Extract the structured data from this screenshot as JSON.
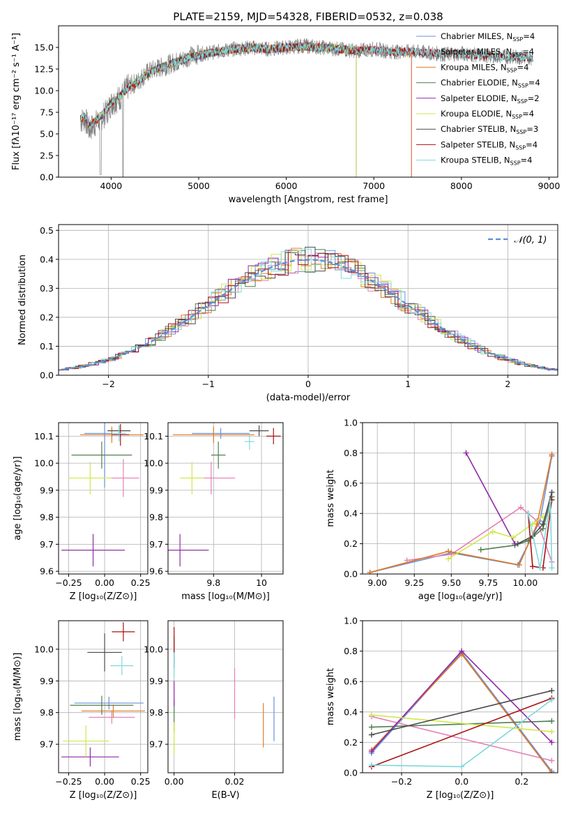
{
  "colors": {
    "chabrier_miles": "#6a8fd8",
    "salpeter_miles": "#e67fb5",
    "kroupa_miles": "#e07a22",
    "chabrier_elodie": "#4f7f4f",
    "salpeter_elodie": "#8e2aa6",
    "kroupa_elodie": "#cfe84a",
    "chabrier_stelib": "#4a4a4a",
    "salpeter_stelib": "#aa1111",
    "kroupa_stelib": "#7fd8dc",
    "normal_fit": "#5b8fd8"
  },
  "chart_data": [
    {
      "id": "spectrum",
      "type": "line",
      "title": "PLATE=2159, MJD=54328, FIBERID=0532, z=0.038",
      "xlabel": "wavelength [Angstrom, rest frame]",
      "ylabel": "Flux [fλ10⁻¹⁷ erg cm⁻² s⁻¹ A⁻¹]",
      "xlim": [
        3400,
        9100
      ],
      "ylim": [
        0,
        17.5
      ],
      "xticks": [
        4000,
        5000,
        6000,
        7000,
        8000,
        9000
      ],
      "yticks": [
        0.0,
        2.5,
        5.0,
        7.5,
        10.0,
        12.5,
        15.0
      ],
      "data_curve": {
        "name": "data",
        "color": "#808080",
        "x": [
          3650,
          3700,
          3750,
          3800,
          3850,
          3900,
          3950,
          4000,
          4100,
          4200,
          4300,
          4400,
          4500,
          4600,
          4700,
          4800,
          4900,
          5000,
          5200,
          5400,
          5600,
          5800,
          6000,
          6200,
          6400,
          6600,
          6800,
          7000,
          7200,
          7400,
          7600,
          7800,
          8000,
          8200,
          8400,
          8600,
          8800
        ],
        "y": [
          6.5,
          6.8,
          5.5,
          6.0,
          6.5,
          7.0,
          7.5,
          8.5,
          9.2,
          10.5,
          11.0,
          12.0,
          12.5,
          12.8,
          13.2,
          13.5,
          14.0,
          14.2,
          14.5,
          14.8,
          15.0,
          14.8,
          15.0,
          15.2,
          15.0,
          14.8,
          14.6,
          14.8,
          14.5,
          14.5,
          14.4,
          14.2,
          14.3,
          14.1,
          14.0,
          13.9,
          13.8
        ]
      },
      "model_curve": {
        "x": [
          3650,
          3700,
          3750,
          3800,
          3850,
          3900,
          3950,
          4000,
          4100,
          4200,
          4300,
          4400,
          4500,
          4600,
          4700,
          4800,
          4900,
          5000,
          5200,
          5400,
          5600,
          5800,
          6000,
          6200,
          6400,
          6600,
          6800,
          7000,
          7200,
          7400
        ],
        "y": [
          6.8,
          7.0,
          6.0,
          6.3,
          6.8,
          7.2,
          7.8,
          8.6,
          9.3,
          10.4,
          11.0,
          11.8,
          12.4,
          12.8,
          13.2,
          13.5,
          13.9,
          14.1,
          14.5,
          14.8,
          15.0,
          14.8,
          15.0,
          15.1,
          15.0,
          14.8,
          14.6,
          14.7,
          14.5,
          14.5
        ]
      },
      "model_extents": {
        "chabrier_miles": 7430,
        "salpeter_miles": 7430,
        "kroupa_miles": 7430,
        "chabrier_elodie": 6800,
        "salpeter_elodie": 6800,
        "kroupa_elodie": 6800,
        "chabrier_stelib": 8820,
        "salpeter_stelib": 8820,
        "kroupa_stelib": 8820
      },
      "legend": [
        {
          "key": "chabrier_miles",
          "label": "Chabrier MILES, N",
          "sub": "SSP",
          "tail": "=4"
        },
        {
          "key": "salpeter_miles",
          "label": "Salpeter MILES, N",
          "sub": "SSP",
          "tail": "=4"
        },
        {
          "key": "kroupa_miles",
          "label": "Kroupa MILES, N",
          "sub": "SSP",
          "tail": "=4"
        },
        {
          "key": "chabrier_elodie",
          "label": "Chabrier ELODIE, N",
          "sub": "SSP",
          "tail": "=4"
        },
        {
          "key": "salpeter_elodie",
          "label": "Salpeter ELODIE, N",
          "sub": "SSP",
          "tail": "=2"
        },
        {
          "key": "kroupa_elodie",
          "label": "Kroupa ELODIE, N",
          "sub": "SSP",
          "tail": "=4"
        },
        {
          "key": "chabrier_stelib",
          "label": "Chabrier STELIB, N",
          "sub": "SSP",
          "tail": "=3"
        },
        {
          "key": "salpeter_stelib",
          "label": "Salpeter STELIB, N",
          "sub": "SSP",
          "tail": "=4"
        },
        {
          "key": "kroupa_stelib",
          "label": "Kroupa STELIB, N",
          "sub": "SSP",
          "tail": "=4"
        }
      ],
      "grid": false,
      "legend_position": "top-right"
    },
    {
      "id": "residuals",
      "type": "line",
      "xlabel": "(data-model)/error",
      "ylabel": "Normed distribution",
      "xlim": [
        -2.5,
        2.5
      ],
      "ylim": [
        0,
        0.52
      ],
      "xticks": [
        -2,
        -1,
        0,
        1,
        2
      ],
      "xtick_labels": [
        "−2",
        "−1",
        "0",
        "1",
        "2"
      ],
      "yticks": [
        0.0,
        0.1,
        0.2,
        0.3,
        0.4,
        0.5
      ],
      "grid": true,
      "bin_width": 0.1,
      "fit_label": "𝒩(0, 1)",
      "legend_position": "top-right"
    },
    {
      "id": "age_vs_Z",
      "type": "scatter",
      "xlabel": "Z [log₁₀(Z/Z⊙)]",
      "ylabel": "age  [log₁₀(age/yr)]",
      "xlim": [
        -0.32,
        0.3
      ],
      "ylim": [
        9.59,
        10.15
      ],
      "xticks": [
        -0.25,
        0.0,
        0.25
      ],
      "xtick_labels": [
        "−0.25",
        "0.00",
        "0.25"
      ],
      "yticks": [
        9.6,
        9.7,
        9.8,
        9.9,
        10.0,
        10.1
      ],
      "grid": true,
      "points": [
        {
          "key": "chabrier_miles",
          "x": 0.0,
          "y": 10.11,
          "xerr": 0.14,
          "yerr": 0.2
        },
        {
          "key": "salpeter_miles",
          "x": 0.13,
          "y": 9.945,
          "xerr": 0.11,
          "yerr": 0.07
        },
        {
          "key": "kroupa_miles",
          "x": 0.05,
          "y": 10.105,
          "xerr": 0.22,
          "yerr": 0.03
        },
        {
          "key": "chabrier_elodie",
          "x": -0.02,
          "y": 10.03,
          "xerr": 0.21,
          "yerr": 0.05
        },
        {
          "key": "salpeter_elodie",
          "x": -0.08,
          "y": 9.678,
          "xerr": 0.22,
          "yerr": 0.06
        },
        {
          "key": "kroupa_elodie",
          "x": -0.1,
          "y": 9.945,
          "xerr": 0.15,
          "yerr": 0.06
        },
        {
          "key": "chabrier_stelib",
          "x": 0.1,
          "y": 10.12,
          "xerr": 0.08,
          "yerr": 0.02
        },
        {
          "key": "salpeter_stelib",
          "x": 0.11,
          "y": 10.105,
          "xerr": 0.06,
          "yerr": 0.04
        },
        {
          "key": "kroupa_stelib",
          "x": 0.1,
          "y": 10.11,
          "xerr": 0.05,
          "yerr": 0.03
        }
      ]
    },
    {
      "id": "age_vs_mass",
      "type": "scatter",
      "xlabel": "mass [log₁₀(M/M⊙)]",
      "xlim": [
        9.61,
        10.09
      ],
      "ylim": [
        9.59,
        10.15
      ],
      "xticks": [
        9.8,
        10.0
      ],
      "yticks": [
        9.6,
        9.7,
        9.8,
        9.9,
        10.0,
        10.1
      ],
      "grid": true,
      "points": [
        {
          "key": "chabrier_miles",
          "x": 9.83,
          "y": 10.11,
          "xerr": 0.12,
          "yerr": 0.02
        },
        {
          "key": "salpeter_miles",
          "x": 9.79,
          "y": 9.945,
          "xerr": 0.1,
          "yerr": 0.06
        },
        {
          "key": "kroupa_miles",
          "x": 9.8,
          "y": 10.105,
          "xerr": 0.17,
          "yerr": 0.03
        },
        {
          "key": "chabrier_elodie",
          "x": 9.82,
          "y": 10.03,
          "xerr": 0.03,
          "yerr": 0.05
        },
        {
          "key": "salpeter_elodie",
          "x": 9.66,
          "y": 9.678,
          "xerr": 0.12,
          "yerr": 0.06
        },
        {
          "key": "kroupa_elodie",
          "x": 9.71,
          "y": 9.945,
          "xerr": 0.05,
          "yerr": 0.06
        },
        {
          "key": "chabrier_stelib",
          "x": 9.99,
          "y": 10.12,
          "xerr": 0.04,
          "yerr": 0.02
        },
        {
          "key": "salpeter_stelib",
          "x": 10.05,
          "y": 10.1,
          "xerr": 0.03,
          "yerr": 0.03
        },
        {
          "key": "kroupa_stelib",
          "x": 9.95,
          "y": 10.08,
          "xerr": 0.02,
          "yerr": 0.03
        }
      ]
    },
    {
      "id": "massweight_vs_age",
      "type": "line",
      "xlabel": "age  [log₁₀(age/yr)]",
      "ylabel": "mass weight",
      "xlim": [
        8.9,
        10.22
      ],
      "ylim": [
        0,
        1.0
      ],
      "xticks": [
        9.0,
        9.25,
        9.5,
        9.75,
        10.0
      ],
      "xtick_labels": [
        "9.00",
        "9.25",
        "9.50",
        "9.75",
        "10.00"
      ],
      "yticks": [
        0.0,
        0.2,
        0.4,
        0.6,
        0.8,
        1.0
      ],
      "grid": true,
      "series": [
        {
          "key": "chabrier_miles",
          "x": [
            8.95,
            9.5,
            9.95,
            10.1,
            10.18
          ],
          "y": [
            0.01,
            0.14,
            0.06,
            0.35,
            0.78
          ]
        },
        {
          "key": "salpeter_miles",
          "x": [
            9.2,
            9.5,
            9.97,
            10.08,
            10.18
          ],
          "y": [
            0.09,
            0.13,
            0.44,
            0.35,
            0.08
          ]
        },
        {
          "key": "kroupa_miles",
          "x": [
            8.95,
            9.48,
            9.96,
            10.08,
            10.18
          ],
          "y": [
            0.01,
            0.15,
            0.06,
            0.33,
            0.79
          ]
        },
        {
          "key": "chabrier_elodie",
          "x": [
            9.7,
            9.93,
            10.02,
            10.12,
            10.18
          ],
          "y": [
            0.16,
            0.19,
            0.22,
            0.3,
            0.51
          ]
        },
        {
          "key": "salpeter_elodie",
          "x": [
            9.6,
            9.93
          ],
          "y": [
            0.8,
            0.2
          ]
        },
        {
          "key": "kroupa_elodie",
          "x": [
            9.48,
            9.78,
            9.92,
            10.05,
            10.12
          ],
          "y": [
            0.1,
            0.28,
            0.24,
            0.33,
            0.38
          ]
        },
        {
          "key": "chabrier_stelib",
          "x": [
            9.95,
            10.05,
            10.12,
            10.18
          ],
          "y": [
            0.2,
            0.25,
            0.33,
            0.54
          ]
        },
        {
          "key": "salpeter_stelib",
          "x": [
            10.02,
            10.05,
            10.12,
            10.18
          ],
          "y": [
            0.4,
            0.05,
            0.04,
            0.49
          ]
        },
        {
          "key": "kroupa_stelib",
          "x": [
            10.02,
            10.1,
            10.17,
            10.18
          ],
          "y": [
            0.4,
            0.04,
            0.48,
            0.04
          ]
        }
      ]
    },
    {
      "id": "mass_vs_Z",
      "type": "scatter",
      "xlabel": "Z [log₁₀(Z/Z⊙)]",
      "ylabel": "mass [log₁₀(M/M⊙)]",
      "xlim": [
        -0.32,
        0.3
      ],
      "ylim": [
        9.61,
        10.09
      ],
      "xticks": [
        -0.25,
        0.0,
        0.25
      ],
      "xtick_labels": [
        "−0.25",
        "0.00",
        "0.25"
      ],
      "yticks": [
        9.7,
        9.8,
        9.9,
        10.0
      ],
      "grid": true,
      "points": [
        {
          "key": "chabrier_miles",
          "x": 0.03,
          "y": 9.83,
          "xerr": 0.24,
          "yerr": 0.02
        },
        {
          "key": "salpeter_miles",
          "x": 0.05,
          "y": 9.785,
          "xerr": 0.16,
          "yerr": 0.02
        },
        {
          "key": "kroupa_miles",
          "x": 0.06,
          "y": 9.805,
          "xerr": 0.22,
          "yerr": 0.02
        },
        {
          "key": "chabrier_elodie",
          "x": -0.02,
          "y": 9.823,
          "xerr": 0.22,
          "yerr": 0.03
        },
        {
          "key": "salpeter_elodie",
          "x": -0.1,
          "y": 9.66,
          "xerr": 0.2,
          "yerr": 0.03
        },
        {
          "key": "kroupa_elodie",
          "x": -0.13,
          "y": 9.71,
          "xerr": 0.16,
          "yerr": 0.05
        },
        {
          "key": "chabrier_stelib",
          "x": 0.0,
          "y": 9.99,
          "xerr": 0.12,
          "yerr": 0.06
        },
        {
          "key": "salpeter_stelib",
          "x": 0.13,
          "y": 10.055,
          "xerr": 0.08,
          "yerr": 0.03
        },
        {
          "key": "kroupa_stelib",
          "x": 0.12,
          "y": 9.948,
          "xerr": 0.08,
          "yerr": 0.03
        }
      ]
    },
    {
      "id": "mass_vs_ebv",
      "type": "scatter",
      "xlabel": "E(B-V)",
      "xlim": [
        -0.002,
        0.036
      ],
      "ylim": [
        9.61,
        10.09
      ],
      "xticks": [
        0.0,
        0.02
      ],
      "xtick_labels": [
        "0.00",
        "0.02"
      ],
      "yticks": [
        9.7,
        9.8,
        9.9,
        10.0
      ],
      "grid": true,
      "points": [
        {
          "key": "chabrier_miles",
          "x": 0.033,
          "y": 9.78,
          "xerr": 0.0,
          "yerr": 0.07
        },
        {
          "key": "salpeter_miles",
          "x": 0.02,
          "y": 9.86,
          "xerr": 0.0,
          "yerr": 0.08
        },
        {
          "key": "kroupa_miles",
          "x": 0.0295,
          "y": 9.76,
          "xerr": 0.0,
          "yerr": 0.07
        },
        {
          "key": "chabrier_elodie",
          "x": 0.0,
          "y": 9.79,
          "xerr": 0.0,
          "yerr": 0.05
        },
        {
          "key": "salpeter_elodie",
          "x": 0.0,
          "y": 9.86,
          "xerr": 0.0,
          "yerr": 0.04
        },
        {
          "key": "kroupa_elodie",
          "x": 0.0,
          "y": 9.72,
          "xerr": 0.0,
          "yerr": 0.05
        },
        {
          "key": "chabrier_stelib",
          "x": 0.0,
          "y": 9.99,
          "xerr": 0.0,
          "yerr": 0.05
        },
        {
          "key": "salpeter_stelib",
          "x": 0.0,
          "y": 10.03,
          "xerr": 0.0,
          "yerr": 0.04
        },
        {
          "key": "kroupa_stelib",
          "x": 0.0,
          "y": 9.95,
          "xerr": 0.0,
          "yerr": 0.04
        }
      ]
    },
    {
      "id": "massweight_vs_Z",
      "type": "line",
      "xlabel": "Z [log₁₀(Z/Z⊙)]",
      "ylabel": "mass weight",
      "xlim": [
        -0.33,
        0.32
      ],
      "ylim": [
        0,
        1.0
      ],
      "xticks": [
        -0.2,
        0.0,
        0.2
      ],
      "xtick_labels": [
        "−0.2",
        "0.0",
        "0.2"
      ],
      "yticks": [
        0.0,
        0.2,
        0.4,
        0.6,
        0.8,
        1.0
      ],
      "grid": true,
      "series": [
        {
          "key": "chabrier_miles",
          "x": [
            -0.3,
            0.0,
            0.3
          ],
          "y": [
            0.13,
            0.79,
            0.01
          ]
        },
        {
          "key": "salpeter_miles",
          "x": [
            -0.3,
            0.3
          ],
          "y": [
            0.37,
            0.08
          ]
        },
        {
          "key": "kroupa_miles",
          "x": [
            -0.3,
            0.0,
            0.3
          ],
          "y": [
            0.15,
            0.78,
            0.0
          ]
        },
        {
          "key": "chabrier_elodie",
          "x": [
            -0.3,
            0.3
          ],
          "y": [
            0.3,
            0.34
          ]
        },
        {
          "key": "salpeter_elodie",
          "x": [
            -0.3,
            0.0,
            0.3
          ],
          "y": [
            0.14,
            0.8,
            0.2
          ]
        },
        {
          "key": "kroupa_elodie",
          "x": [
            -0.3,
            0.3
          ],
          "y": [
            0.38,
            0.27
          ]
        },
        {
          "key": "chabrier_stelib",
          "x": [
            -0.3,
            0.3
          ],
          "y": [
            0.25,
            0.54
          ]
        },
        {
          "key": "salpeter_stelib",
          "x": [
            -0.3,
            0.3
          ],
          "y": [
            0.04,
            0.49
          ]
        },
        {
          "key": "kroupa_stelib",
          "x": [
            -0.3,
            0.0,
            0.3
          ],
          "y": [
            0.05,
            0.04,
            0.48
          ]
        }
      ]
    }
  ]
}
